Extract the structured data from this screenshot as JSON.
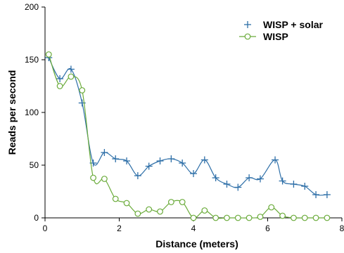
{
  "chart_data": {
    "type": "line",
    "xlabel": "Distance (meters)",
    "ylabel": "Reads per second",
    "xlim": [
      0,
      8
    ],
    "ylim": [
      0,
      200
    ],
    "x_ticks": [
      0,
      2,
      4,
      6,
      8
    ],
    "y_ticks": [
      0,
      50,
      100,
      150,
      200
    ],
    "grid": false,
    "legend_position": "top-right",
    "series": [
      {
        "name": "WISP + solar",
        "color": "#2e6fa8",
        "marker": "plus",
        "x": [
          0.1,
          0.4,
          0.7,
          1.0,
          1.3,
          1.6,
          1.9,
          2.2,
          2.5,
          2.8,
          3.1,
          3.4,
          3.7,
          4.0,
          4.3,
          4.6,
          4.9,
          5.2,
          5.5,
          5.8,
          6.2,
          6.4,
          6.7,
          7.0,
          7.3,
          7.6
        ],
        "y": [
          152,
          132,
          141,
          109,
          52,
          62,
          56,
          54,
          40,
          49,
          54,
          56,
          52,
          42,
          55,
          38,
          32,
          29,
          38,
          37,
          55,
          35,
          32,
          30,
          22,
          22
        ]
      },
      {
        "name": "WISP",
        "color": "#6aab3a",
        "marker": "circle",
        "x": [
          0.1,
          0.4,
          0.7,
          1.0,
          1.3,
          1.6,
          1.9,
          2.2,
          2.5,
          2.8,
          3.1,
          3.4,
          3.7,
          4.0,
          4.3,
          4.6,
          4.9,
          5.2,
          5.5,
          5.8,
          6.1,
          6.4,
          6.7,
          7.0,
          7.3,
          7.6
        ],
        "y": [
          155,
          125,
          134,
          121,
          38,
          37,
          18,
          14,
          4,
          8,
          6,
          15,
          15,
          0,
          7,
          0,
          0,
          0,
          0,
          1,
          10,
          2,
          0,
          0,
          0,
          0
        ]
      }
    ]
  }
}
